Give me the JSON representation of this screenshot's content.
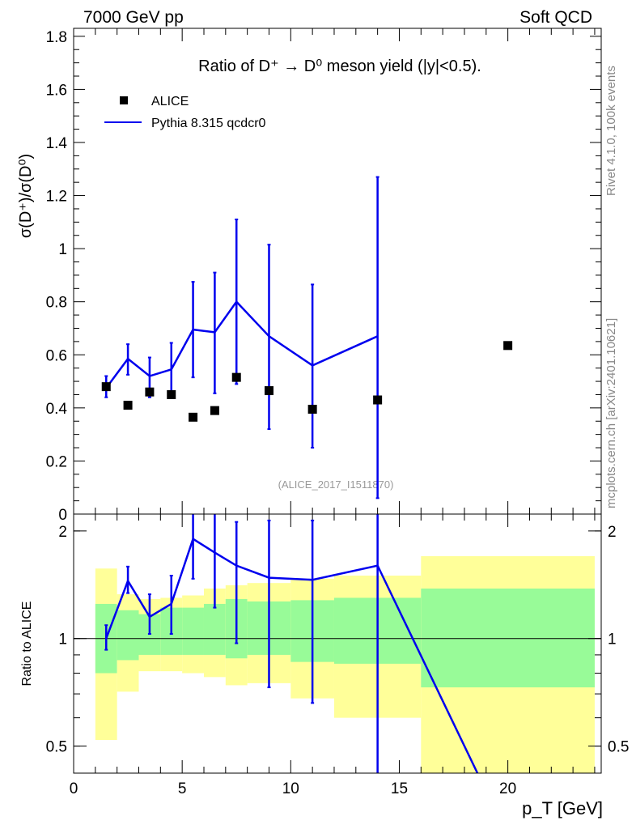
{
  "header": {
    "left": "7000 GeV pp",
    "right": "Soft QCD"
  },
  "side_labels": {
    "rivet": "Rivet 4.1.0,  100k events",
    "mcplots": "mcplots.cern.ch [arXiv:2401.10621]"
  },
  "chart_data": [
    {
      "type": "scatter",
      "panel": "main",
      "title": "Ratio of D⁺ → D⁰ meson yield (|y|<0.5).",
      "ylabel": "σ(D⁺)/σ(D⁰)",
      "xlabel": "",
      "xlim": [
        0,
        24.3
      ],
      "ylim": [
        0,
        1.83
      ],
      "yticks": [
        0,
        0.2,
        0.4,
        0.6,
        0.8,
        1,
        1.2,
        1.4,
        1.6,
        1.8
      ],
      "ytick_labels": [
        "0",
        "0.2",
        "0.4",
        "0.6",
        "0.8",
        "1",
        "1.2",
        "1.4",
        "1.6",
        "1.8"
      ],
      "watermark": "(ALICE_2017_I1511870)",
      "legend": {
        "placement": "top-left",
        "entries": [
          {
            "label": "ALICE",
            "color": "#000000",
            "marker": "square"
          },
          {
            "label": "Pythia 8.315 qcdcr0",
            "color": "#0000ee",
            "marker": "line"
          }
        ]
      },
      "series": [
        {
          "name": "ALICE",
          "color": "#000000",
          "x": [
            1.5,
            2.5,
            3.5,
            4.5,
            5.5,
            6.5,
            7.5,
            9,
            11,
            14,
            20
          ],
          "y": [
            0.48,
            0.41,
            0.46,
            0.45,
            0.365,
            0.39,
            0.515,
            0.465,
            0.395,
            0.43,
            0.635
          ]
        },
        {
          "name": "Pythia 8.315 qcdcr0",
          "color": "#0000ee",
          "x": [
            1.5,
            2.5,
            3.5,
            4.5,
            5.5,
            6.5,
            7.5,
            9,
            11,
            14
          ],
          "y": [
            0.475,
            0.585,
            0.52,
            0.545,
            0.695,
            0.685,
            0.8,
            0.67,
            0.56,
            0.67
          ],
          "err_low": [
            0.44,
            0.525,
            0.44,
            0.45,
            0.515,
            0.455,
            0.49,
            0.32,
            0.25,
            0.06
          ],
          "err_high": [
            0.52,
            0.64,
            0.59,
            0.645,
            0.875,
            0.91,
            1.11,
            1.015,
            0.865,
            1.27
          ]
        }
      ]
    },
    {
      "type": "line",
      "panel": "ratio",
      "ylabel": "Ratio to ALICE",
      "xlabel": "p_T [GeV]",
      "xlim": [
        0,
        24.3
      ],
      "ylim": [
        0.42,
        2.23
      ],
      "scale": "log",
      "yticks": [
        0.5,
        1,
        2
      ],
      "ytick_labels": [
        "0.5",
        "1",
        "2"
      ],
      "xticks": [
        0,
        5,
        10,
        15,
        20
      ],
      "xtick_labels": [
        "0",
        "5",
        "10",
        "15",
        "20"
      ],
      "uncertainty_bands": {
        "bin_edges": [
          1,
          2,
          3,
          4,
          5,
          6,
          7,
          8,
          10,
          12,
          16,
          24
        ],
        "inner_low": [
          0.8,
          0.87,
          0.9,
          0.9,
          0.9,
          0.9,
          0.88,
          0.9,
          0.86,
          0.85,
          0.73
        ],
        "inner_high": [
          1.25,
          1.2,
          1.17,
          1.22,
          1.22,
          1.25,
          1.29,
          1.27,
          1.28,
          1.3,
          1.38
        ],
        "outer_low": [
          0.52,
          0.71,
          0.81,
          0.81,
          0.8,
          0.78,
          0.74,
          0.75,
          0.68,
          0.6,
          0.42
        ],
        "outer_high": [
          1.57,
          1.33,
          1.29,
          1.3,
          1.32,
          1.38,
          1.41,
          1.43,
          1.47,
          1.5,
          1.7
        ],
        "inner_color": "#98fb98",
        "outer_color": "#ffff99"
      },
      "series": [
        {
          "name": "Pythia 8.315 qcdcr0",
          "color": "#0000ee",
          "x": [
            1.5,
            2.5,
            3.5,
            4.5,
            5.5,
            6.5,
            7.5,
            9,
            11,
            14,
            18.6
          ],
          "y": [
            1.0,
            1.45,
            1.15,
            1.25,
            1.9,
            1.74,
            1.6,
            1.48,
            1.46,
            1.6,
            0.42
          ],
          "err_low": [
            0.93,
            1.34,
            1.03,
            1.03,
            1.47,
            1.22,
            0.97,
            0.73,
            0.66,
            0.3,
            null
          ],
          "err_high": [
            1.09,
            1.59,
            1.33,
            1.5,
            2.3,
            2.23,
            2.12,
            2.14,
            2.14,
            2.4,
            null
          ]
        }
      ]
    }
  ]
}
